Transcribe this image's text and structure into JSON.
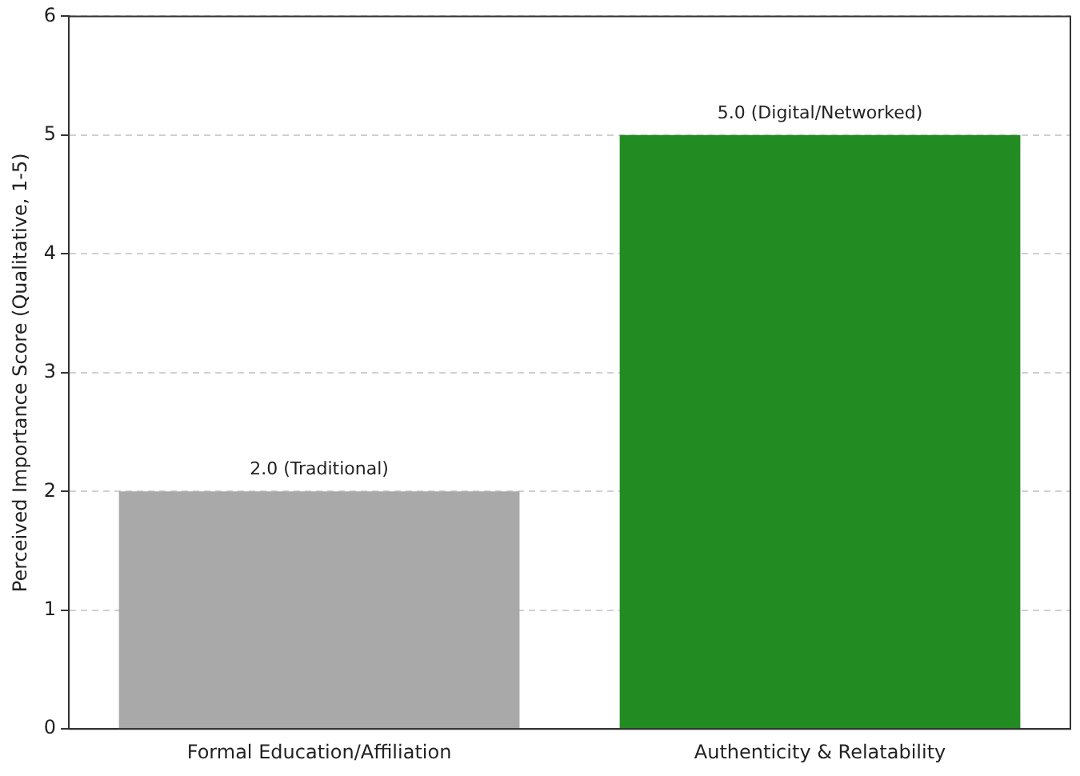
{
  "chart_data": {
    "type": "bar",
    "ylabel": "Perceived Importance Score (Qualitative, 1-5)",
    "categories": [
      "Formal Education/Affiliation",
      "Authenticity & Relatability"
    ],
    "values": [
      2,
      5
    ],
    "colors": [
      "#a9a9a9",
      "#228b22"
    ],
    "value_labels": [
      "2.0 (Traditional)",
      "5.0 (Digital/Networked)"
    ],
    "ylim": [
      0,
      6
    ],
    "yticks": [
      0,
      1,
      2,
      3,
      4,
      5,
      6
    ],
    "grid": "y"
  }
}
